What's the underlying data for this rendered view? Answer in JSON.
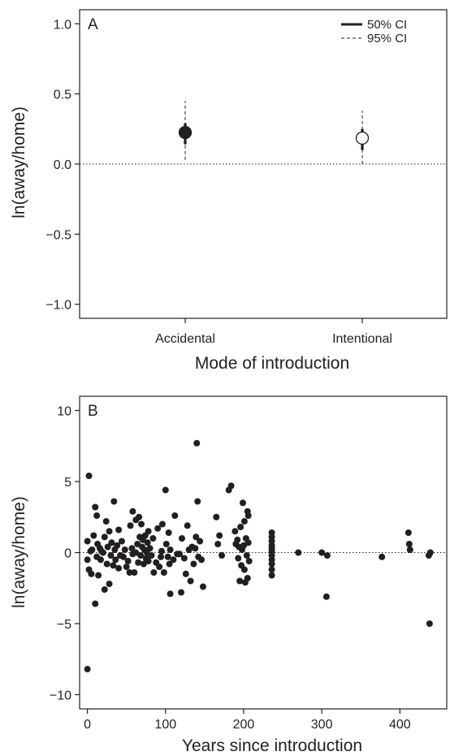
{
  "chart_data": [
    {
      "type": "scatter",
      "panel_label": "A",
      "xlabel": "Mode of introduction",
      "ylabel": "ln(away/home)",
      "categories": [
        "Accidental",
        "Intentional"
      ],
      "ylim": [
        -1.1,
        1.1
      ],
      "yticks": [
        1.0,
        0.5,
        0.0,
        -0.5,
        -1.0
      ],
      "ytick_labels": [
        "1.0",
        "0.5",
        "0.0",
        "−0.5",
        "−1.0"
      ],
      "reference_line_y": 0,
      "legend": {
        "position": "top-right",
        "items": [
          {
            "label": "50% CI",
            "style": "solid-thick"
          },
          {
            "label": "95% CI",
            "style": "dashed"
          }
        ]
      },
      "points": [
        {
          "category": "Accidental",
          "estimate": 0.225,
          "ci50": [
            0.14,
            0.29
          ],
          "ci95": [
            0.03,
            0.45
          ],
          "marker": "filled"
        },
        {
          "category": "Intentional",
          "estimate": 0.185,
          "ci50": [
            0.1,
            0.25
          ],
          "ci95": [
            0.0,
            0.38
          ],
          "marker": "open"
        }
      ],
      "colors": {
        "ink": "#231f20",
        "open_fill": "#ffffff"
      }
    },
    {
      "type": "scatter",
      "panel_label": "B",
      "xlabel": "Years since introduction",
      "ylabel": "ln(away/home)",
      "xlim": [
        -10,
        460
      ],
      "ylim": [
        -11,
        11
      ],
      "xticks": [
        0,
        100,
        200,
        300,
        400
      ],
      "yticks": [
        10,
        5,
        0,
        -5,
        -10
      ],
      "ytick_labels": [
        "10",
        "5",
        "0",
        "−5",
        "−10"
      ],
      "reference_line_y": 0,
      "points": [
        [
          0,
          -8.2
        ],
        [
          2,
          5.4
        ],
        [
          0,
          0.8
        ],
        [
          0,
          -0.5
        ],
        [
          2,
          -1.2
        ],
        [
          4,
          0.1
        ],
        [
          5,
          -1.5
        ],
        [
          6,
          0.2
        ],
        [
          8,
          1.2
        ],
        [
          10,
          -3.6
        ],
        [
          10,
          3.2
        ],
        [
          12,
          2.6
        ],
        [
          12,
          -0.3
        ],
        [
          13,
          0.6
        ],
        [
          14,
          -1.6
        ],
        [
          16,
          0.3
        ],
        [
          17,
          -0.5
        ],
        [
          18,
          0.1
        ],
        [
          20,
          0.0
        ],
        [
          22,
          1.1
        ],
        [
          22,
          -2.6
        ],
        [
          24,
          2.2
        ],
        [
          25,
          -0.8
        ],
        [
          26,
          0.4
        ],
        [
          28,
          -2.2
        ],
        [
          28,
          1.5
        ],
        [
          30,
          -0.2
        ],
        [
          31,
          0.7
        ],
        [
          33,
          -0.9
        ],
        [
          34,
          3.6
        ],
        [
          35,
          0.2
        ],
        [
          36,
          -0.5
        ],
        [
          38,
          0.5
        ],
        [
          40,
          1.6
        ],
        [
          40,
          -1.1
        ],
        [
          42,
          -0.2
        ],
        [
          44,
          0.8
        ],
        [
          46,
          -0.3
        ],
        [
          48,
          0.2
        ],
        [
          50,
          -1.0
        ],
        [
          52,
          -0.6
        ],
        [
          54,
          -1.4
        ],
        [
          55,
          1.9
        ],
        [
          57,
          0.3
        ],
        [
          58,
          2.9
        ],
        [
          58,
          -0.1
        ],
        [
          60,
          -1.4
        ],
        [
          62,
          0.0
        ],
        [
          62,
          2.3
        ],
        [
          64,
          0.6
        ],
        [
          65,
          -0.7
        ],
        [
          66,
          2.5
        ],
        [
          67,
          1.1
        ],
        [
          68,
          -0.2
        ],
        [
          69,
          2.0
        ],
        [
          70,
          0.4
        ],
        [
          71,
          0.9
        ],
        [
          72,
          -0.8
        ],
        [
          73,
          0.2
        ],
        [
          74,
          1.2
        ],
        [
          75,
          -0.4
        ],
        [
          76,
          0.0
        ],
        [
          77,
          0.7
        ],
        [
          78,
          1.5
        ],
        [
          78,
          -0.6
        ],
        [
          80,
          0.3
        ],
        [
          82,
          -0.2
        ],
        [
          84,
          1.0
        ],
        [
          85,
          -1.4
        ],
        [
          88,
          -0.7
        ],
        [
          90,
          1.7
        ],
        [
          92,
          -1.0
        ],
        [
          94,
          -0.3
        ],
        [
          95,
          0.1
        ],
        [
          96,
          2.0
        ],
        [
          98,
          -1.4
        ],
        [
          100,
          4.4
        ],
        [
          101,
          0.6
        ],
        [
          103,
          -0.3
        ],
        [
          104,
          1.4
        ],
        [
          105,
          -0.8
        ],
        [
          106,
          0.2
        ],
        [
          106,
          -2.9
        ],
        [
          110,
          -0.5
        ],
        [
          112,
          2.6
        ],
        [
          115,
          -0.1
        ],
        [
          118,
          -0.1
        ],
        [
          120,
          -2.8
        ],
        [
          121,
          1.0
        ],
        [
          124,
          -0.4
        ],
        [
          126,
          -1.5
        ],
        [
          128,
          1.9
        ],
        [
          130,
          0.2
        ],
        [
          132,
          -2.0
        ],
        [
          134,
          0.4
        ],
        [
          136,
          -0.8
        ],
        [
          138,
          0.3
        ],
        [
          139,
          1.1
        ],
        [
          140,
          7.7
        ],
        [
          141,
          3.6
        ],
        [
          142,
          -0.3
        ],
        [
          144,
          0.8
        ],
        [
          146,
          -0.5
        ],
        [
          148,
          -2.4
        ],
        [
          165,
          2.5
        ],
        [
          167,
          0.6
        ],
        [
          169,
          1.2
        ],
        [
          172,
          -0.2
        ],
        [
          181,
          4.4
        ],
        [
          184,
          4.7
        ],
        [
          189,
          1.5
        ],
        [
          190,
          0.6
        ],
        [
          192,
          0.9
        ],
        [
          193,
          -0.4
        ],
        [
          194,
          0.4
        ],
        [
          195,
          -2.0
        ],
        [
          196,
          1.8
        ],
        [
          197,
          -0.9
        ],
        [
          198,
          0.2
        ],
        [
          199,
          3.5
        ],
        [
          200,
          0.5
        ],
        [
          201,
          -1.2
        ],
        [
          201,
          2.2
        ],
        [
          202,
          -2.1
        ],
        [
          203,
          1.0
        ],
        [
          204,
          -0.2
        ],
        [
          205,
          2.9
        ],
        [
          205,
          -1.8
        ],
        [
          206,
          0.7
        ],
        [
          206,
          2.6
        ],
        [
          207,
          -0.6
        ],
        [
          236,
          1.4
        ],
        [
          236,
          1.1
        ],
        [
          236,
          0.8
        ],
        [
          236,
          0.5
        ],
        [
          236,
          0.3
        ],
        [
          236,
          0.1
        ],
        [
          236,
          -0.2
        ],
        [
          236,
          -0.5
        ],
        [
          236,
          -0.8
        ],
        [
          236,
          -1.2
        ],
        [
          236,
          -1.6
        ],
        [
          270,
          0.0
        ],
        [
          300,
          0.0
        ],
        [
          306,
          -3.1
        ],
        [
          307,
          -0.2
        ],
        [
          377,
          -0.3
        ],
        [
          411,
          1.4
        ],
        [
          412,
          0.6
        ],
        [
          413,
          0.2
        ],
        [
          437,
          -0.2
        ],
        [
          438,
          -5.0
        ],
        [
          439,
          0.0
        ]
      ],
      "colors": {
        "ink": "#231f20"
      }
    }
  ]
}
